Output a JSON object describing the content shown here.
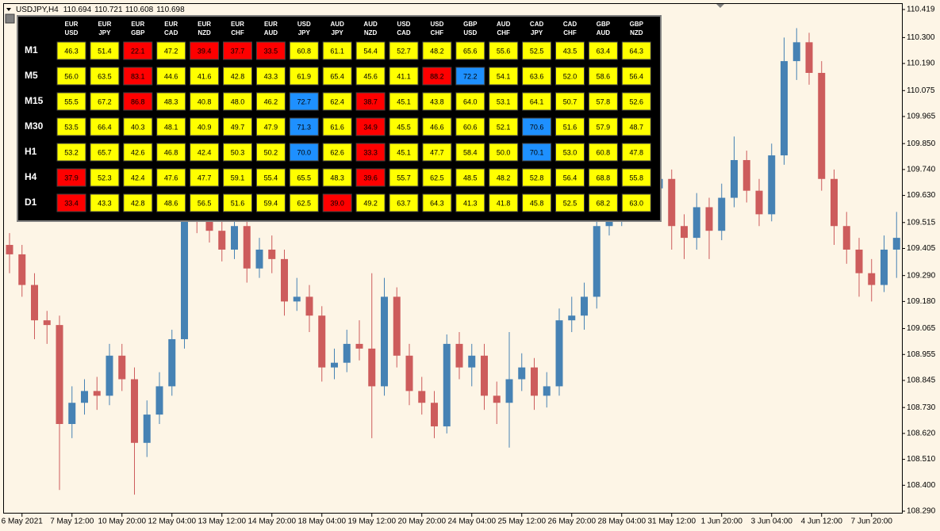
{
  "header": {
    "symbol": "USDJPY,H4",
    "quote": [
      "110.694",
      "110.721",
      "110.608",
      "110.698"
    ]
  },
  "chart_data": {
    "type": "candlestick",
    "categories": [
      null,
      "6 May 2021",
      null,
      null,
      null,
      "7 May 12:00",
      null,
      null,
      null,
      "10 May 20:00",
      null,
      null,
      null,
      "12 May 04:00",
      null,
      null,
      null,
      "13 May 12:00",
      null,
      null,
      null,
      "14 May 20:00",
      null,
      null,
      null,
      "18 May 04:00",
      null,
      null,
      null,
      "19 May 12:00",
      null,
      null,
      null,
      "20 May 20:00",
      null,
      null,
      null,
      "24 May 04:00",
      null,
      null,
      null,
      "25 May 12:00",
      null,
      null,
      null,
      "26 May 20:00",
      null,
      null,
      null,
      "28 May 04:00",
      null,
      null,
      null,
      "31 May 12:00",
      null,
      null,
      null,
      "1 Jun 20:00",
      null,
      null,
      null,
      "3 Jun 04:00",
      null,
      null,
      null,
      "4 Jun 12:00",
      null,
      null,
      null,
      "7 Jun 20:00",
      null,
      null
    ],
    "open": [
      109.42,
      109.38,
      109.25,
      109.1,
      109.08,
      108.66,
      108.75,
      108.8,
      108.78,
      108.95,
      108.85,
      108.58,
      108.7,
      108.82,
      109.02,
      109.55,
      109.52,
      109.48,
      109.4,
      109.5,
      109.32,
      109.4,
      109.36,
      109.18,
      109.2,
      109.12,
      108.9,
      108.92,
      109.0,
      108.98,
      108.82,
      109.2,
      108.95,
      108.8,
      108.75,
      108.65,
      109.0,
      108.9,
      108.95,
      108.78,
      108.75,
      108.85,
      108.9,
      108.78,
      108.82,
      109.1,
      109.12,
      109.2,
      109.5,
      109.55,
      109.6,
      109.62,
      109.66,
      109.7,
      109.5,
      109.45,
      109.58,
      109.48,
      109.62,
      109.78,
      109.65,
      109.55,
      109.8,
      110.2,
      110.28,
      110.15,
      109.7,
      109.5,
      109.4,
      109.3,
      109.25,
      109.4
    ],
    "high": [
      109.47,
      109.42,
      109.3,
      109.14,
      109.12,
      108.82,
      108.85,
      108.86,
      109.0,
      109.0,
      108.9,
      108.76,
      108.88,
      109.06,
      109.6,
      109.62,
      109.57,
      109.53,
      109.56,
      109.54,
      109.45,
      109.46,
      109.4,
      109.28,
      109.25,
      109.16,
      108.98,
      109.06,
      109.1,
      109.3,
      109.28,
      109.24,
      109.0,
      108.86,
      108.8,
      109.04,
      109.05,
      109.0,
      109.0,
      108.84,
      109.05,
      108.96,
      108.94,
      108.88,
      109.15,
      109.2,
      109.26,
      109.55,
      109.6,
      109.65,
      109.68,
      109.7,
      109.74,
      109.74,
      109.55,
      109.64,
      109.62,
      109.68,
      109.88,
      109.82,
      109.7,
      109.85,
      110.3,
      110.34,
      110.32,
      110.2,
      109.74,
      109.56,
      109.45,
      109.36,
      109.46,
      109.56
    ],
    "low": [
      109.3,
      109.2,
      109.02,
      109.0,
      108.38,
      108.6,
      108.7,
      108.72,
      108.74,
      108.8,
      108.36,
      108.52,
      108.66,
      108.78,
      108.98,
      109.47,
      109.43,
      109.35,
      109.36,
      109.26,
      109.28,
      109.3,
      109.12,
      109.14,
      109.05,
      108.84,
      108.85,
      108.88,
      108.93,
      108.6,
      108.78,
      108.9,
      108.74,
      108.7,
      108.6,
      108.62,
      108.85,
      108.82,
      108.72,
      108.66,
      108.56,
      108.8,
      108.72,
      108.73,
      108.78,
      109.05,
      109.06,
      109.15,
      109.46,
      109.5,
      109.55,
      109.58,
      109.62,
      109.4,
      109.36,
      109.4,
      109.36,
      109.44,
      109.58,
      109.6,
      109.5,
      109.52,
      109.76,
      110.12,
      110.1,
      109.65,
      109.42,
      109.34,
      109.2,
      109.18,
      109.22,
      109.28
    ],
    "close": [
      109.38,
      109.25,
      109.1,
      109.08,
      108.66,
      108.75,
      108.8,
      108.78,
      108.95,
      108.85,
      108.58,
      108.7,
      108.82,
      109.02,
      109.55,
      109.52,
      109.48,
      109.4,
      109.5,
      109.32,
      109.4,
      109.36,
      109.18,
      109.2,
      109.12,
      108.9,
      108.92,
      109.0,
      108.98,
      108.82,
      109.2,
      108.95,
      108.8,
      108.75,
      108.65,
      109.0,
      108.9,
      108.95,
      108.78,
      108.75,
      108.85,
      108.9,
      108.78,
      108.82,
      109.1,
      109.12,
      109.2,
      109.5,
      109.55,
      109.6,
      109.62,
      109.66,
      109.7,
      109.5,
      109.45,
      109.58,
      109.48,
      109.62,
      109.78,
      109.65,
      109.55,
      109.8,
      110.2,
      110.28,
      110.15,
      109.7,
      109.5,
      109.4,
      109.3,
      109.25,
      109.4,
      109.45
    ],
    "up_color": "#4682b4",
    "down_color": "#cd5c5c",
    "ylim": [
      108.29,
      110.419
    ],
    "yticks": [
      {
        "value": 110.419,
        "label": "110.419"
      },
      {
        "value": 110.3,
        "label": "110.300"
      },
      {
        "value": 110.19,
        "label": "110.190"
      },
      {
        "value": 110.075,
        "label": "110.075"
      },
      {
        "value": 109.965,
        "label": "109.965"
      },
      {
        "value": 109.85,
        "label": "109.850"
      },
      {
        "value": 109.74,
        "label": "109.740"
      },
      {
        "value": 109.63,
        "label": "109.630"
      },
      {
        "value": 109.515,
        "label": "109.515"
      },
      {
        "value": 109.405,
        "label": "109.405"
      },
      {
        "value": 109.29,
        "label": "109.290"
      },
      {
        "value": 109.18,
        "label": "109.180"
      },
      {
        "value": 109.065,
        "label": "109.065"
      },
      {
        "value": 108.955,
        "label": "108.955"
      },
      {
        "value": 108.845,
        "label": "108.845"
      },
      {
        "value": 108.73,
        "label": "108.730"
      },
      {
        "value": 108.62,
        "label": "108.620"
      },
      {
        "value": 108.51,
        "label": "108.510"
      },
      {
        "value": 108.4,
        "label": "108.400"
      },
      {
        "value": 108.29,
        "label": "108.290"
      }
    ],
    "grid": false
  },
  "table": {
    "columns": [
      [
        "EUR",
        "USD"
      ],
      [
        "EUR",
        "JPY"
      ],
      [
        "EUR",
        "GBP"
      ],
      [
        "EUR",
        "CAD"
      ],
      [
        "EUR",
        "NZD"
      ],
      [
        "EUR",
        "CHF"
      ],
      [
        "EUR",
        "AUD"
      ],
      [
        "USD",
        "JPY"
      ],
      [
        "AUD",
        "JPY"
      ],
      [
        "AUD",
        "NZD"
      ],
      [
        "USD",
        "CAD"
      ],
      [
        "USD",
        "CHF"
      ],
      [
        "GBP",
        "USD"
      ],
      [
        "AUD",
        "CHF"
      ],
      [
        "CAD",
        "JPY"
      ],
      [
        "CAD",
        "CHF"
      ],
      [
        "GBP",
        "AUD"
      ],
      [
        "GBP",
        "NZD"
      ]
    ],
    "palette": {
      "yellow": "#ffff00",
      "red": "#ff0000",
      "blue": "#1e90ff"
    },
    "rows": [
      {
        "label": "M1",
        "cells": [
          "46.3",
          "51.4",
          "22.1",
          "47.2",
          "39.4",
          "37.7",
          "33.5",
          "60.8",
          "61.1",
          "54.4",
          "52.7",
          "48.2",
          "65.6",
          "55.6",
          "52.5",
          "43.5",
          "63.4",
          "64.3"
        ],
        "colors": [
          "yellow",
          "yellow",
          "red",
          "yellow",
          "red",
          "red",
          "red",
          "yellow",
          "yellow",
          "yellow",
          "yellow",
          "yellow",
          "yellow",
          "yellow",
          "yellow",
          "yellow",
          "yellow",
          "yellow"
        ]
      },
      {
        "label": "M5",
        "cells": [
          "56.0",
          "63.5",
          "83.1",
          "44.6",
          "41.6",
          "42.8",
          "43.3",
          "61.9",
          "65.4",
          "45.6",
          "41.1",
          "88.2",
          "72.2",
          "54.1",
          "63.6",
          "52.0",
          "58.6",
          "56.4"
        ],
        "colors": [
          "yellow",
          "yellow",
          "red",
          "yellow",
          "yellow",
          "yellow",
          "yellow",
          "yellow",
          "yellow",
          "yellow",
          "yellow",
          "red",
          "blue",
          "yellow",
          "yellow",
          "yellow",
          "yellow",
          "yellow"
        ]
      },
      {
        "label": "M15",
        "cells": [
          "55.5",
          "67.2",
          "86.8",
          "48.3",
          "40.8",
          "48.0",
          "46.2",
          "72.7",
          "62.4",
          "38.7",
          "45.1",
          "43.8",
          "64.0",
          "53.1",
          "64.1",
          "50.7",
          "57.8",
          "52.6"
        ],
        "colors": [
          "yellow",
          "yellow",
          "red",
          "yellow",
          "yellow",
          "yellow",
          "yellow",
          "blue",
          "yellow",
          "red",
          "yellow",
          "yellow",
          "yellow",
          "yellow",
          "yellow",
          "yellow",
          "yellow",
          "yellow"
        ]
      },
      {
        "label": "M30",
        "cells": [
          "53.5",
          "66.4",
          "40.3",
          "48.1",
          "40.9",
          "49.7",
          "47.9",
          "71.3",
          "61.6",
          "34.9",
          "45.5",
          "46.6",
          "60.6",
          "52.1",
          "70.6",
          "51.6",
          "57.9",
          "48.7"
        ],
        "colors": [
          "yellow",
          "yellow",
          "yellow",
          "yellow",
          "yellow",
          "yellow",
          "yellow",
          "blue",
          "yellow",
          "red",
          "yellow",
          "yellow",
          "yellow",
          "yellow",
          "blue",
          "yellow",
          "yellow",
          "yellow"
        ]
      },
      {
        "label": "H1",
        "cells": [
          "53.2",
          "65.7",
          "42.6",
          "46.8",
          "42.4",
          "50.3",
          "50.2",
          "70.0",
          "62.6",
          "33.3",
          "45.1",
          "47.7",
          "58.4",
          "50.0",
          "70.1",
          "53.0",
          "60.8",
          "47.8"
        ],
        "colors": [
          "yellow",
          "yellow",
          "yellow",
          "yellow",
          "yellow",
          "yellow",
          "yellow",
          "blue",
          "yellow",
          "red",
          "yellow",
          "yellow",
          "yellow",
          "yellow",
          "blue",
          "yellow",
          "yellow",
          "yellow"
        ]
      },
      {
        "label": "H4",
        "cells": [
          "37.9",
          "52.3",
          "42.4",
          "47.6",
          "47.7",
          "59.1",
          "55.4",
          "65.5",
          "48.3",
          "39.6",
          "55.7",
          "62.5",
          "48.5",
          "48.2",
          "52.8",
          "56.4",
          "68.8",
          "55.8"
        ],
        "colors": [
          "red",
          "yellow",
          "yellow",
          "yellow",
          "yellow",
          "yellow",
          "yellow",
          "yellow",
          "yellow",
          "red",
          "yellow",
          "yellow",
          "yellow",
          "yellow",
          "yellow",
          "yellow",
          "yellow",
          "yellow"
        ]
      },
      {
        "label": "D1",
        "cells": [
          "33.4",
          "43.3",
          "42.8",
          "48.6",
          "56.5",
          "51.6",
          "59.4",
          "62.5",
          "39.0",
          "49.2",
          "63.7",
          "64.3",
          "41.3",
          "41.8",
          "45.8",
          "52.5",
          "68.2",
          "63.0"
        ],
        "colors": [
          "red",
          "yellow",
          "yellow",
          "yellow",
          "yellow",
          "yellow",
          "yellow",
          "yellow",
          "red",
          "yellow",
          "yellow",
          "yellow",
          "yellow",
          "yellow",
          "yellow",
          "yellow",
          "yellow",
          "yellow"
        ]
      }
    ]
  }
}
